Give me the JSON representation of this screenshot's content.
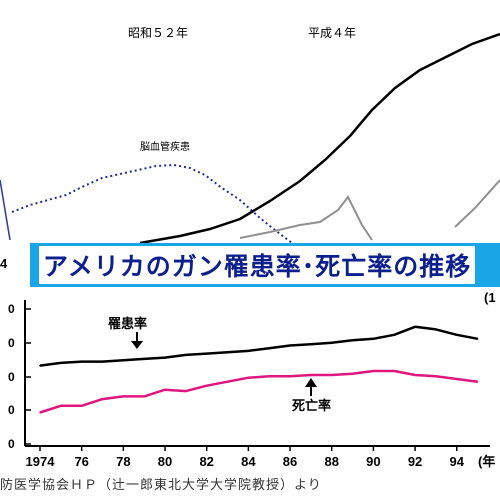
{
  "top_chart": {
    "era_labels": [
      "昭和５２年",
      "平成４年"
    ],
    "left_tick": "4",
    "series": [
      {
        "name": "脳血管疾患",
        "style": "dotted",
        "color": "#1f2d8a"
      }
    ]
  },
  "banner": {
    "title": "アメリカのガン罹患率･死亡率の推移",
    "background": "#1aa6e6",
    "text_color": "#0d1f8c"
  },
  "source": "防医学協会ＨＰ（辻一郎東北大学大学院教授）より",
  "chart_data": {
    "type": "line",
    "x": [
      1974,
      1975,
      1976,
      1977,
      1978,
      1979,
      1980,
      1981,
      1982,
      1983,
      1984,
      1985,
      1986,
      1987,
      1988,
      1989,
      1990,
      1991,
      1992,
      1993,
      1994,
      1995
    ],
    "xticks": [
      "1974",
      "76",
      "78",
      "80",
      "82",
      "84",
      "86",
      "88",
      "90",
      "92",
      "94"
    ],
    "yticks": [
      "0",
      "0",
      "0",
      "0",
      "0"
    ],
    "x_unit_label": "(年",
    "y_unit_label": "(1",
    "series": [
      {
        "name": "罹患率",
        "color": "#000000",
        "values": [
          57,
          59,
          60,
          60,
          61,
          62,
          63,
          65,
          66,
          67,
          68,
          70,
          72,
          73,
          74,
          76,
          77,
          80,
          86,
          84,
          80,
          77
        ]
      },
      {
        "name": "死亡率",
        "color": "#e0167f",
        "values": [
          22,
          27,
          27,
          32,
          34,
          34,
          39,
          38,
          42,
          45,
          48,
          49,
          49,
          50,
          50,
          51,
          53,
          53,
          50,
          49,
          47,
          45
        ]
      }
    ]
  }
}
